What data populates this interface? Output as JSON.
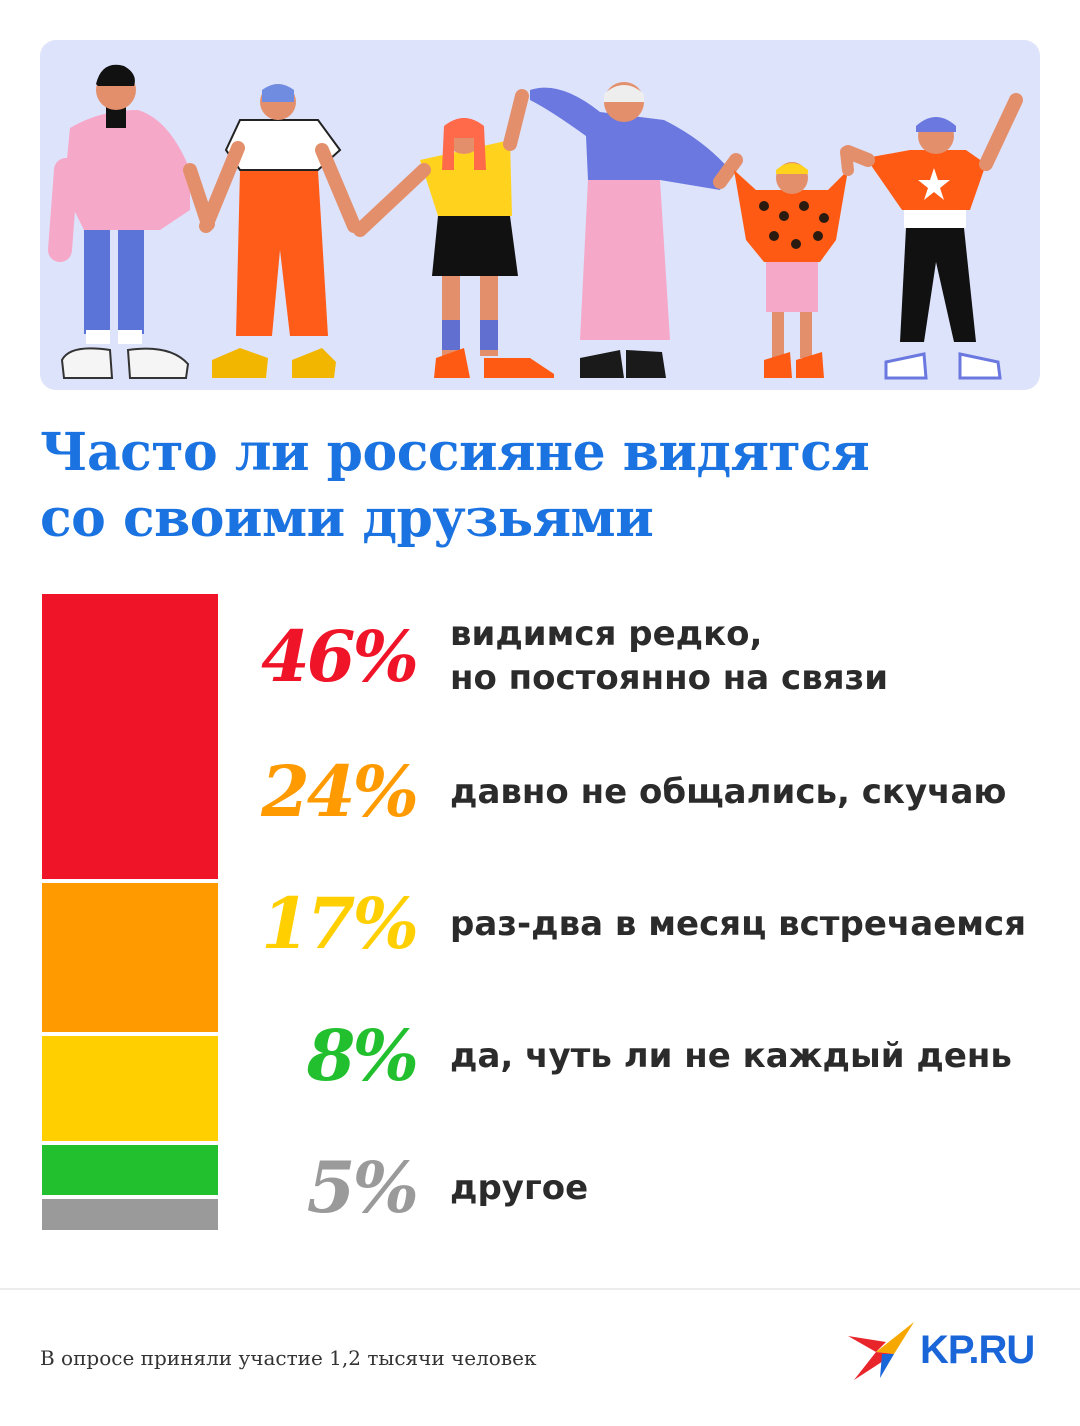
{
  "title": {
    "line1": "Часто ли россияне видятся",
    "line2": "со своими друзьями"
  },
  "chart_data": {
    "type": "bar",
    "subtype": "stacked-100",
    "title": "Часто ли россияне видятся со своими друзьями",
    "categories": [
      "видимся редко,\nно постоянно на связи",
      "давно не общались, скучаю",
      "раз-два в месяц встречаемся",
      "да, чуть ли не каждый день",
      "другое"
    ],
    "values": [
      46,
      24,
      17,
      8,
      5
    ],
    "value_labels": [
      "46%",
      "24%",
      "17%",
      "8%",
      "5%"
    ],
    "colors": [
      "#f01428",
      "#ff9a00",
      "#ffcf00",
      "#22c02e",
      "#9a9a9a"
    ],
    "unit": "%"
  },
  "footnote": "В опросе приняли участие 1,2 тысячи человек",
  "logo": {
    "text": "KP.RU",
    "colors": [
      "#e8252b",
      "#f6a800",
      "#1a66d8"
    ]
  },
  "illustration": {
    "description_icon": "people-holding-hands-illustration",
    "background": "#dde3fb"
  }
}
